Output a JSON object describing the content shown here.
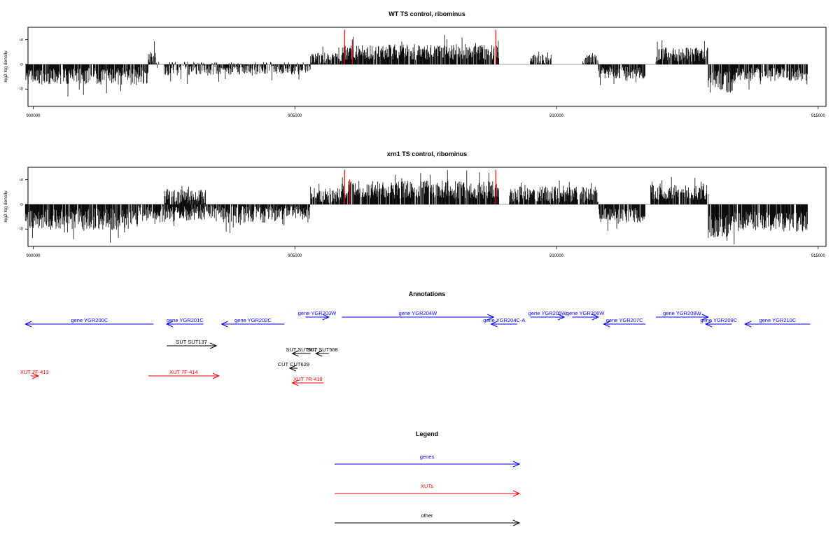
{
  "chart_data": [
    {
      "type": "bar",
      "title": "WT TS control, ribominus",
      "xlabel": "",
      "ylabel": "log2 log density",
      "xlim": [
        899900,
        915150
      ],
      "ylim": [
        -8.5,
        7.5
      ],
      "xticks": [
        900000,
        905000,
        910000,
        915000
      ],
      "xtick_labels": [
        "900000",
        "905000",
        "910000",
        "915000"
      ],
      "yticks": [
        -5,
        0,
        5
      ],
      "ytick_labels": [
        "-5",
        "0",
        "5"
      ],
      "grid": false,
      "legend": "none",
      "highlight_color": "#ff0000",
      "highlight_x": [
        905950,
        906100,
        908840
      ],
      "highlight_values": [
        7,
        5,
        7
      ],
      "regions": [
        {
          "start": 899850,
          "end": 900600,
          "mean": -2.5,
          "amp": 1.6
        },
        {
          "start": 900600,
          "end": 902200,
          "mean": -2.4,
          "amp": 1.8
        },
        {
          "start": 902200,
          "end": 902400,
          "mean": 0.8,
          "amp": 1.8
        },
        {
          "start": 902500,
          "end": 903500,
          "mean": -0.8,
          "amp": 1.4
        },
        {
          "start": 903500,
          "end": 904700,
          "mean": -0.8,
          "amp": 1.3
        },
        {
          "start": 904700,
          "end": 905300,
          "mean": -0.8,
          "amp": 1.3
        },
        {
          "start": 905300,
          "end": 905900,
          "mean": 1.2,
          "amp": 1.2
        },
        {
          "start": 905900,
          "end": 908900,
          "mean": 2.5,
          "amp": 1.6
        },
        {
          "start": 909500,
          "end": 909900,
          "mean": 0.9,
          "amp": 1.1
        },
        {
          "start": 910500,
          "end": 910800,
          "mean": 1.0,
          "amp": 1.0
        },
        {
          "start": 910800,
          "end": 911700,
          "mean": -1.6,
          "amp": 1.3
        },
        {
          "start": 911900,
          "end": 912900,
          "mean": 2.0,
          "amp": 1.4
        },
        {
          "start": 912900,
          "end": 913400,
          "mean": -3.5,
          "amp": 2.3
        },
        {
          "start": 913400,
          "end": 914800,
          "mean": -2.0,
          "amp": 1.4
        }
      ]
    },
    {
      "type": "bar",
      "title": "xrn1 TS control, ribominus",
      "xlabel": "",
      "ylabel": "log2 log density",
      "xlim": [
        899900,
        915150
      ],
      "ylim": [
        -8.5,
        7.5
      ],
      "xticks": [
        900000,
        905000,
        910000,
        915000
      ],
      "xtick_labels": [
        "900000",
        "905000",
        "910000",
        "915000"
      ],
      "yticks": [
        -5,
        0,
        5
      ],
      "ytick_labels": [
        "-5",
        "0",
        "5"
      ],
      "grid": false,
      "legend": "none",
      "highlight_color": "#ff0000",
      "highlight_x": [
        905950,
        906050,
        908840
      ],
      "highlight_values": [
        7,
        5,
        7
      ],
      "regions": [
        {
          "start": 899850,
          "end": 900600,
          "mean": -3.0,
          "amp": 2.0
        },
        {
          "start": 900600,
          "end": 902000,
          "mean": -3.0,
          "amp": 2.2
        },
        {
          "start": 902000,
          "end": 902500,
          "mean": -2.0,
          "amp": 2.0
        },
        {
          "start": 902500,
          "end": 903300,
          "mean": 1.5,
          "amp": 1.6
        },
        {
          "start": 902500,
          "end": 903300,
          "mean": -2.0,
          "amp": 1.6
        },
        {
          "start": 903300,
          "end": 904800,
          "mean": -2.0,
          "amp": 1.8
        },
        {
          "start": 904800,
          "end": 905300,
          "mean": -1.5,
          "amp": 1.5
        },
        {
          "start": 905300,
          "end": 905900,
          "mean": 1.8,
          "amp": 1.5
        },
        {
          "start": 905900,
          "end": 908900,
          "mean": 3.0,
          "amp": 1.8
        },
        {
          "start": 909100,
          "end": 910800,
          "mean": 2.0,
          "amp": 1.6
        },
        {
          "start": 910800,
          "end": 911700,
          "mean": -2.2,
          "amp": 1.5
        },
        {
          "start": 911800,
          "end": 912900,
          "mean": 2.4,
          "amp": 1.6
        },
        {
          "start": 912900,
          "end": 913400,
          "mean": -4.5,
          "amp": 2.3
        },
        {
          "start": 913400,
          "end": 914800,
          "mean": -3.5,
          "amp": 2.0
        }
      ]
    }
  ],
  "annotations": {
    "title": "Annotations",
    "features": [
      {
        "label": "gene YGR200C",
        "type": "gene",
        "strand": "-",
        "start": 899850,
        "end": 902300,
        "row": 2
      },
      {
        "label": "gene YGR201C",
        "type": "gene",
        "strand": "-",
        "start": 902550,
        "end": 903250,
        "row": 2
      },
      {
        "label": "gene YGR202C",
        "type": "gene",
        "strand": "-",
        "start": 903600,
        "end": 904800,
        "row": 2
      },
      {
        "label": "gene YGR203W",
        "type": "gene",
        "strand": "+",
        "start": 905200,
        "end": 905650,
        "row": 1
      },
      {
        "label": "gene YGR204W",
        "type": "gene",
        "strand": "+",
        "start": 905900,
        "end": 908800,
        "row": 1
      },
      {
        "label": "gene YGR204C-A",
        "type": "gene",
        "strand": "-",
        "start": 908750,
        "end": 909250,
        "row": 2
      },
      {
        "label": "gene YGR205W",
        "type": "gene",
        "strand": "+",
        "start": 909500,
        "end": 910150,
        "row": 1
      },
      {
        "label": "gene YGR206W",
        "type": "gene",
        "strand": "+",
        "start": 910300,
        "end": 910800,
        "row": 1
      },
      {
        "label": "gene YGR207C",
        "type": "gene",
        "strand": "-",
        "start": 910900,
        "end": 911700,
        "row": 2
      },
      {
        "label": "gene YGR208W",
        "type": "gene",
        "strand": "+",
        "start": 911900,
        "end": 912900,
        "row": 1
      },
      {
        "label": "gene YGR209C",
        "type": "gene",
        "strand": "-",
        "start": 912850,
        "end": 913350,
        "row": 2
      },
      {
        "label": "gene YGR210C",
        "type": "gene",
        "strand": "-",
        "start": 913600,
        "end": 914850,
        "row": 2
      },
      {
        "label": "SUT SUT137",
        "type": "other",
        "strand": "+",
        "start": 902550,
        "end": 903500,
        "row": 3
      },
      {
        "label": "SUT SUT567",
        "type": "other",
        "strand": "-",
        "start": 904950,
        "end": 905300,
        "row": 4
      },
      {
        "label": "SUT SUT568",
        "type": "other",
        "strand": "-",
        "start": 905400,
        "end": 905650,
        "row": 4
      },
      {
        "label": "CUT CUT629",
        "type": "other",
        "strand": "-",
        "start": 904900,
        "end": 905050,
        "row": 5
      },
      {
        "label": "XUT 7F-413",
        "type": "xut",
        "strand": "+",
        "start": 899950,
        "end": 900100,
        "row": 6
      },
      {
        "label": "XUT 7F-414",
        "type": "xut",
        "strand": "+",
        "start": 902200,
        "end": 903550,
        "row": 6
      },
      {
        "label": "XUT 7R-418",
        "type": "xut",
        "strand": "-",
        "start": 904950,
        "end": 905550,
        "row": 7
      }
    ]
  },
  "legend": {
    "title": "Legend",
    "items": [
      {
        "label": "genes",
        "color": "#0000ff"
      },
      {
        "label": "XUTs",
        "color": "#ff0000"
      },
      {
        "label": "other",
        "color": "#000000"
      }
    ]
  },
  "colors": {
    "gene": "#0000ff",
    "xut": "#ff0000",
    "other": "#000000",
    "bars": "#000000",
    "baseline": "#9e9e9e"
  }
}
